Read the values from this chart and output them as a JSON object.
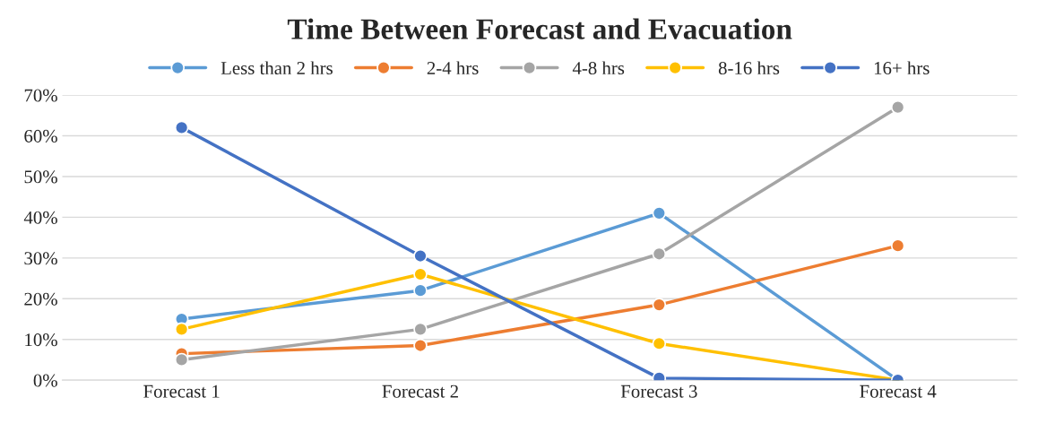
{
  "chart_data": {
    "type": "line",
    "title": "Time Between Forecast and Evacuation",
    "categories": [
      "Forecast 1",
      "Forecast 2",
      "Forecast 3",
      "Forecast 4"
    ],
    "series": [
      {
        "name": "Less than 2 hrs",
        "color": "#5b9bd5",
        "values": [
          15,
          22,
          41,
          0
        ]
      },
      {
        "name": "2-4 hrs",
        "color": "#ed7d31",
        "values": [
          6.5,
          8.5,
          18.5,
          33
        ]
      },
      {
        "name": "4-8 hrs",
        "color": "#a5a5a5",
        "values": [
          5,
          12.5,
          31,
          67
        ]
      },
      {
        "name": "8-16 hrs",
        "color": "#ffc000",
        "values": [
          12.5,
          26,
          9,
          0
        ]
      },
      {
        "name": "16+ hrs",
        "color": "#4472c4",
        "values": [
          62,
          30.5,
          0.5,
          0
        ]
      }
    ],
    "ylim": [
      0,
      70
    ],
    "yticks": [
      {
        "value": 0,
        "label": "0%"
      },
      {
        "value": 10,
        "label": "10%"
      },
      {
        "value": 20,
        "label": "20%"
      },
      {
        "value": 30,
        "label": "30%"
      },
      {
        "value": 40,
        "label": "40%"
      },
      {
        "value": 50,
        "label": "50%"
      },
      {
        "value": 60,
        "label": "60%"
      },
      {
        "value": 70,
        "label": "70%"
      }
    ],
    "grid": "y",
    "legend": "top",
    "marker": "circle",
    "line_style": "solid"
  }
}
